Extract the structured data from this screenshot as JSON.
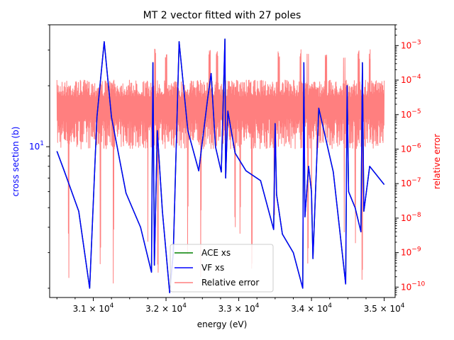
{
  "chart_data": {
    "type": "line",
    "title": "MT 2 vector fitted with 27 poles",
    "xlabel": "energy (eV)",
    "ylabel_left": "cross section (b)",
    "ylabel_right": "relative error",
    "xlim": [
      30400,
      35150
    ],
    "ylim_left": [
      1.8,
      40
    ],
    "ylim_right": [
      5e-11,
      0.004
    ],
    "left_scale": "log",
    "right_scale": "log",
    "x_tick_labels": [
      {
        "value": 31000,
        "mantissa": "3.1",
        "base": "10",
        "exp": "4"
      },
      {
        "value": 32000,
        "mantissa": "3.2",
        "base": "10",
        "exp": "4"
      },
      {
        "value": 33000,
        "mantissa": "3.3",
        "base": "10",
        "exp": "4"
      },
      {
        "value": 34000,
        "mantissa": "3.4",
        "base": "10",
        "exp": "4"
      },
      {
        "value": 35000,
        "mantissa": "3.5",
        "base": "10",
        "exp": "4"
      }
    ],
    "y_left_tick_labels": [
      {
        "value": 10,
        "base": "10",
        "exp": "1"
      }
    ],
    "y_right_tick_labels": [
      {
        "value": 1e-10,
        "base": "10",
        "exp": "−10"
      },
      {
        "value": 1e-09,
        "base": "10",
        "exp": "−9"
      },
      {
        "value": 1e-08,
        "base": "10",
        "exp": "−8"
      },
      {
        "value": 1e-07,
        "base": "10",
        "exp": "−7"
      },
      {
        "value": 1e-06,
        "base": "10",
        "exp": "−6"
      },
      {
        "value": 1e-05,
        "base": "10",
        "exp": "−5"
      },
      {
        "value": 0.0001,
        "base": "10",
        "exp": "−4"
      },
      {
        "value": 0.001,
        "base": "10",
        "exp": "−3"
      }
    ],
    "legend_position": "lower center",
    "series": [
      {
        "name": "ACE xs",
        "color": "#008000",
        "axis": "left",
        "x": [
          30500,
          30600,
          30800,
          30950,
          31050,
          31150,
          31250,
          31450,
          31650,
          31800,
          31820,
          31840,
          31880,
          31950,
          32050,
          32100,
          32180,
          32300,
          32450,
          32570,
          32620,
          32680,
          32760,
          32810,
          32820,
          32850,
          32950,
          33100,
          33300,
          33480,
          33500,
          33520,
          33600,
          33750,
          33880,
          33895,
          33910,
          33960,
          34000,
          34020,
          34100,
          34300,
          34470,
          34490,
          34510,
          34600,
          34680,
          34700,
          34720,
          34800,
          35000
        ],
        "y": [
          9.5,
          7.6,
          4.8,
          2.0,
          14.0,
          33.0,
          14.0,
          5.9,
          4.0,
          2.4,
          26.0,
          2.6,
          12.0,
          4.8,
          1.9,
          3.0,
          33.0,
          12.0,
          7.6,
          17.0,
          23.0,
          10.0,
          7.5,
          34.0,
          7.0,
          15.0,
          9.3,
          7.6,
          6.8,
          3.9,
          13.0,
          5.8,
          3.7,
          3.0,
          2.0,
          26.0,
          4.5,
          8.0,
          6.0,
          2.8,
          15.5,
          7.5,
          2.1,
          20.0,
          6.0,
          5.0,
          3.8,
          26.0,
          4.8,
          8.0,
          6.5
        ]
      },
      {
        "name": "VF xs",
        "color": "#0000ff",
        "axis": "left",
        "x": [
          30500,
          30600,
          30800,
          30950,
          31050,
          31150,
          31250,
          31450,
          31650,
          31800,
          31820,
          31840,
          31880,
          31950,
          32050,
          32100,
          32180,
          32300,
          32450,
          32570,
          32620,
          32680,
          32760,
          32810,
          32820,
          32850,
          32950,
          33100,
          33300,
          33480,
          33500,
          33520,
          33600,
          33750,
          33880,
          33895,
          33910,
          33960,
          34000,
          34020,
          34100,
          34300,
          34470,
          34490,
          34510,
          34600,
          34680,
          34700,
          34720,
          34800,
          35000
        ],
        "y": [
          9.5,
          7.6,
          4.8,
          2.0,
          14.0,
          33.0,
          14.0,
          5.9,
          4.0,
          2.4,
          26.0,
          2.6,
          12.0,
          4.8,
          1.9,
          3.0,
          33.0,
          12.0,
          7.6,
          17.0,
          23.0,
          10.0,
          7.5,
          34.0,
          7.0,
          15.0,
          9.3,
          7.6,
          6.8,
          3.9,
          13.0,
          5.8,
          3.7,
          3.0,
          2.0,
          26.0,
          4.5,
          8.0,
          6.0,
          2.8,
          15.5,
          7.5,
          2.1,
          20.0,
          6.0,
          5.0,
          3.8,
          26.0,
          4.8,
          8.0,
          6.5
        ]
      },
      {
        "name": "Relative error",
        "color": "#ff0000",
        "axis": "right",
        "opacity": 0.5,
        "x_range": [
          30500,
          35000
        ],
        "envelope_low": 1e-06,
        "envelope_high": 0.0001,
        "spikes_up": [
          31850,
          32000,
          32600,
          32700,
          33550,
          33850,
          33950,
          34200,
          34450,
          34650,
          34800
        ],
        "spikes_down": [
          30660,
          31100,
          31280,
          31750,
          31890,
          32300,
          32480,
          32950,
          33020,
          33180,
          33490,
          33950,
          34000,
          34450,
          34600,
          34700
        ]
      }
    ]
  }
}
